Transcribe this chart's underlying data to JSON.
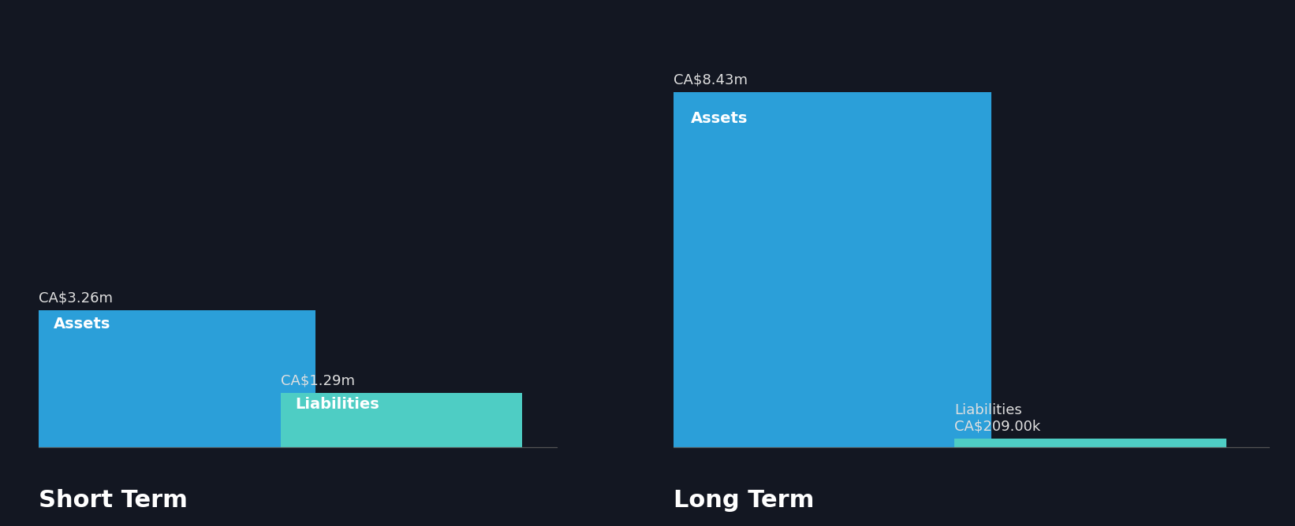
{
  "background_color": "#131722",
  "short_term": {
    "assets_value": 3.26,
    "liabilities_value": 1.29,
    "assets_label": "Assets",
    "liabilities_label": "Liabilities",
    "assets_annotation": "CA$3.26m",
    "liabilities_annotation": "CA$1.29m",
    "title": "Short Term"
  },
  "long_term": {
    "assets_value": 8.43,
    "liabilities_value": 0.209,
    "assets_label": "Assets",
    "liabilities_label": "Liabilities",
    "assets_annotation": "CA$8.43m",
    "liabilities_annotation": "CA$209.00k",
    "title": "Long Term"
  },
  "assets_color": "#2B9FD9",
  "liabilities_color": "#4ECDC4",
  "text_color": "#ffffff",
  "annotation_color": "#e0e0e0",
  "title_fontsize": 22,
  "label_fontsize": 14,
  "annotation_fontsize": 13,
  "ylim": [
    0,
    9.5
  ]
}
